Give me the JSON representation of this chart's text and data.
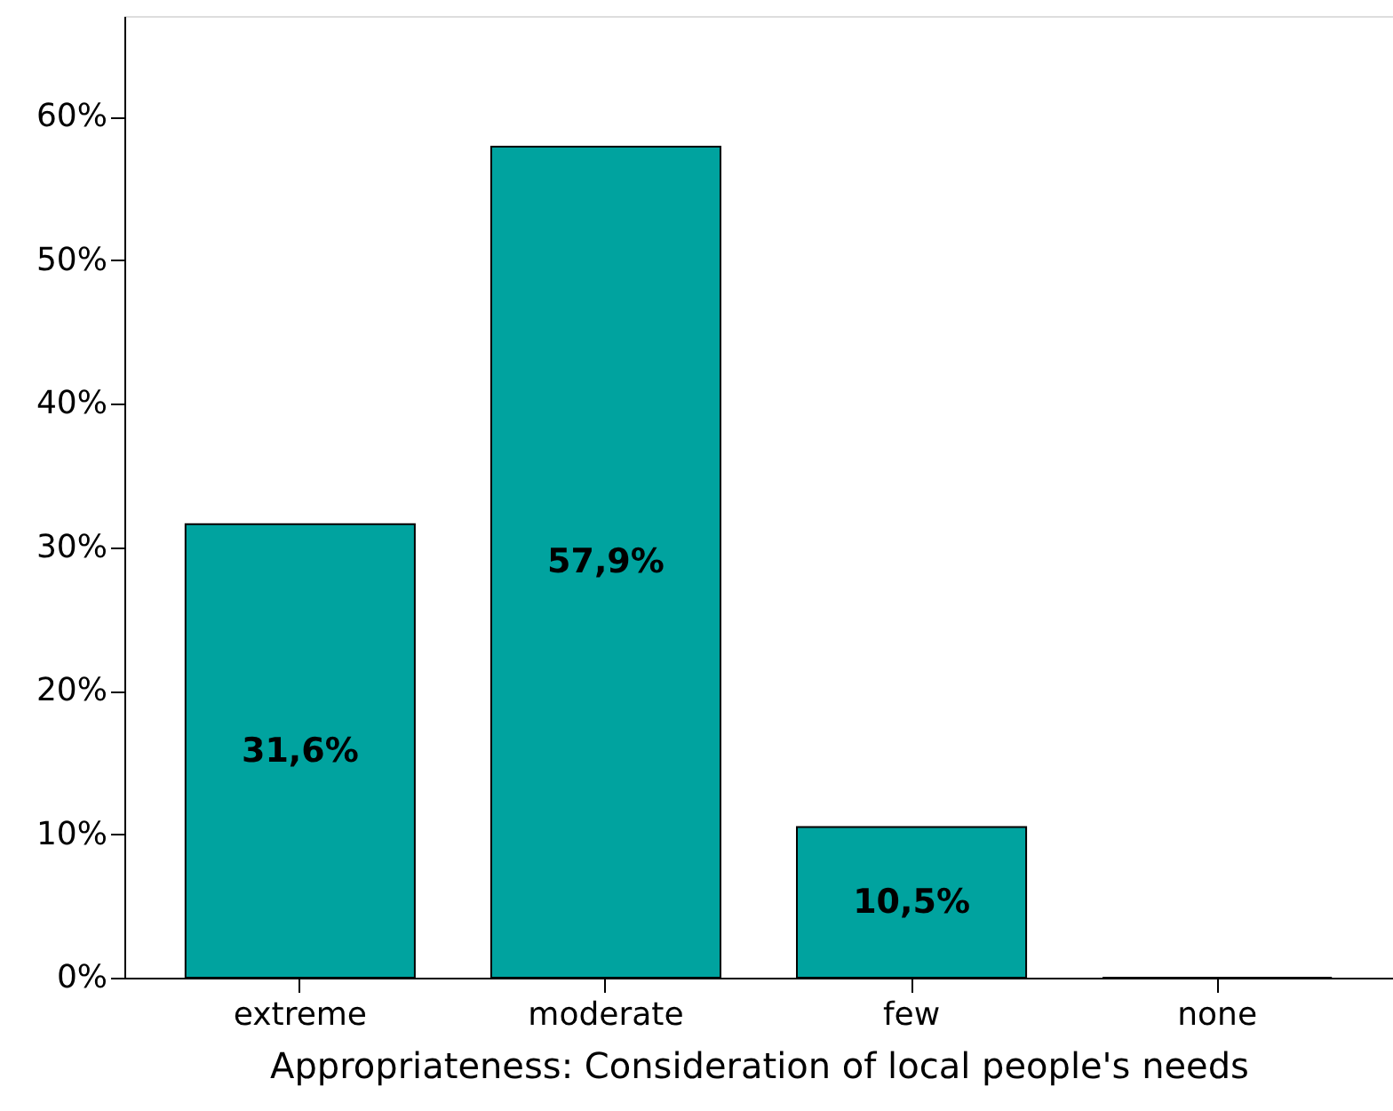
{
  "chart_data": {
    "type": "bar",
    "xlabel": "Appropriateness: Consideration of local people's needs",
    "categories": [
      "extreme",
      "moderate",
      "few",
      "none"
    ],
    "values": [
      31.6,
      57.9,
      10.5,
      0
    ],
    "value_labels": [
      "31,6%",
      "57,9%",
      "10,5%",
      null
    ],
    "color": "#00a39f",
    "ylim": [
      0,
      67
    ],
    "yticks": [
      {
        "value": 0,
        "label": "0%"
      },
      {
        "value": 10,
        "label": "10%"
      },
      {
        "value": 20,
        "label": "20%"
      },
      {
        "value": 30,
        "label": "30%"
      },
      {
        "value": 40,
        "label": "40%"
      },
      {
        "value": 50,
        "label": "50%"
      },
      {
        "value": 60,
        "label": "60%"
      }
    ],
    "grid": false
  }
}
